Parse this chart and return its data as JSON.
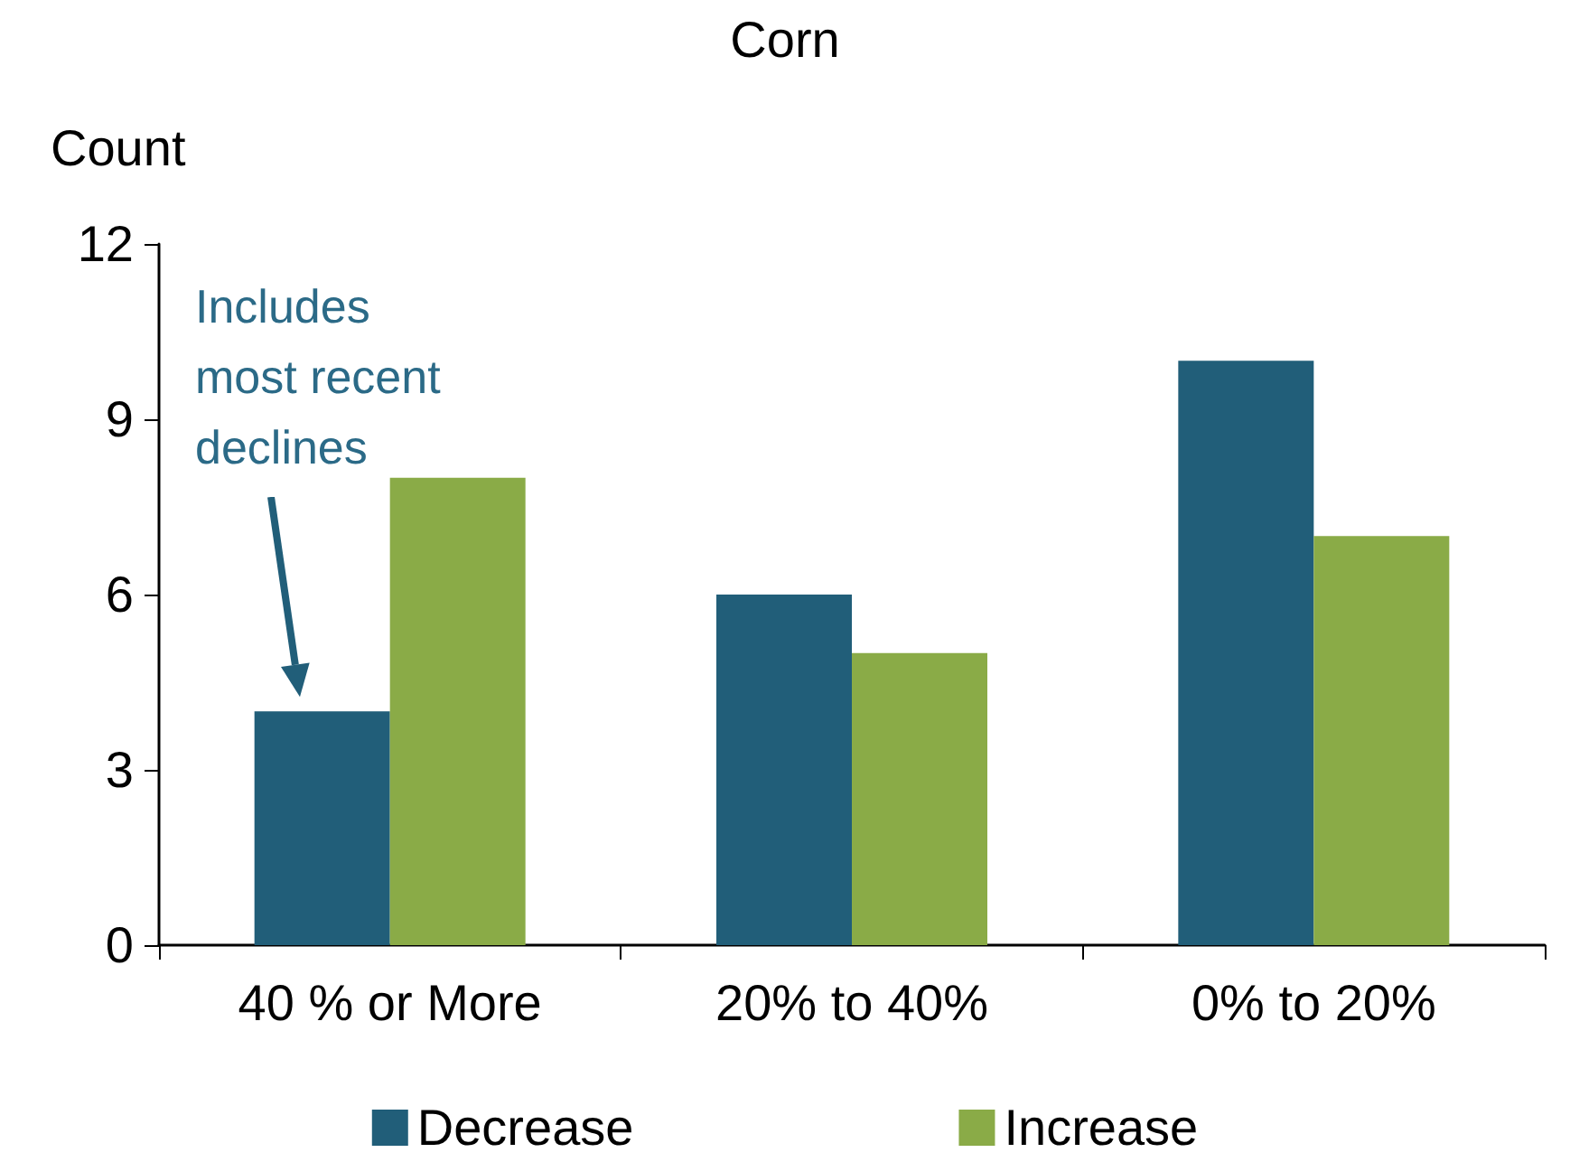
{
  "chart_data": {
    "type": "bar",
    "title": "Corn",
    "ylabel": "Count",
    "categories": [
      "40 % or More",
      "20% to 40%",
      "0% to 20%"
    ],
    "series": [
      {
        "name": "Decrease",
        "color": "#215e79",
        "values": [
          4,
          6,
          10
        ]
      },
      {
        "name": "Increase",
        "color": "#8aab47",
        "values": [
          8,
          5,
          7
        ]
      }
    ],
    "ylim": [
      0,
      12
    ],
    "yticks": [
      0,
      3,
      6,
      9,
      12
    ],
    "grid": false,
    "legend": "bottom",
    "annotations": [
      "Includes\nmost recent\ndeclines"
    ]
  }
}
